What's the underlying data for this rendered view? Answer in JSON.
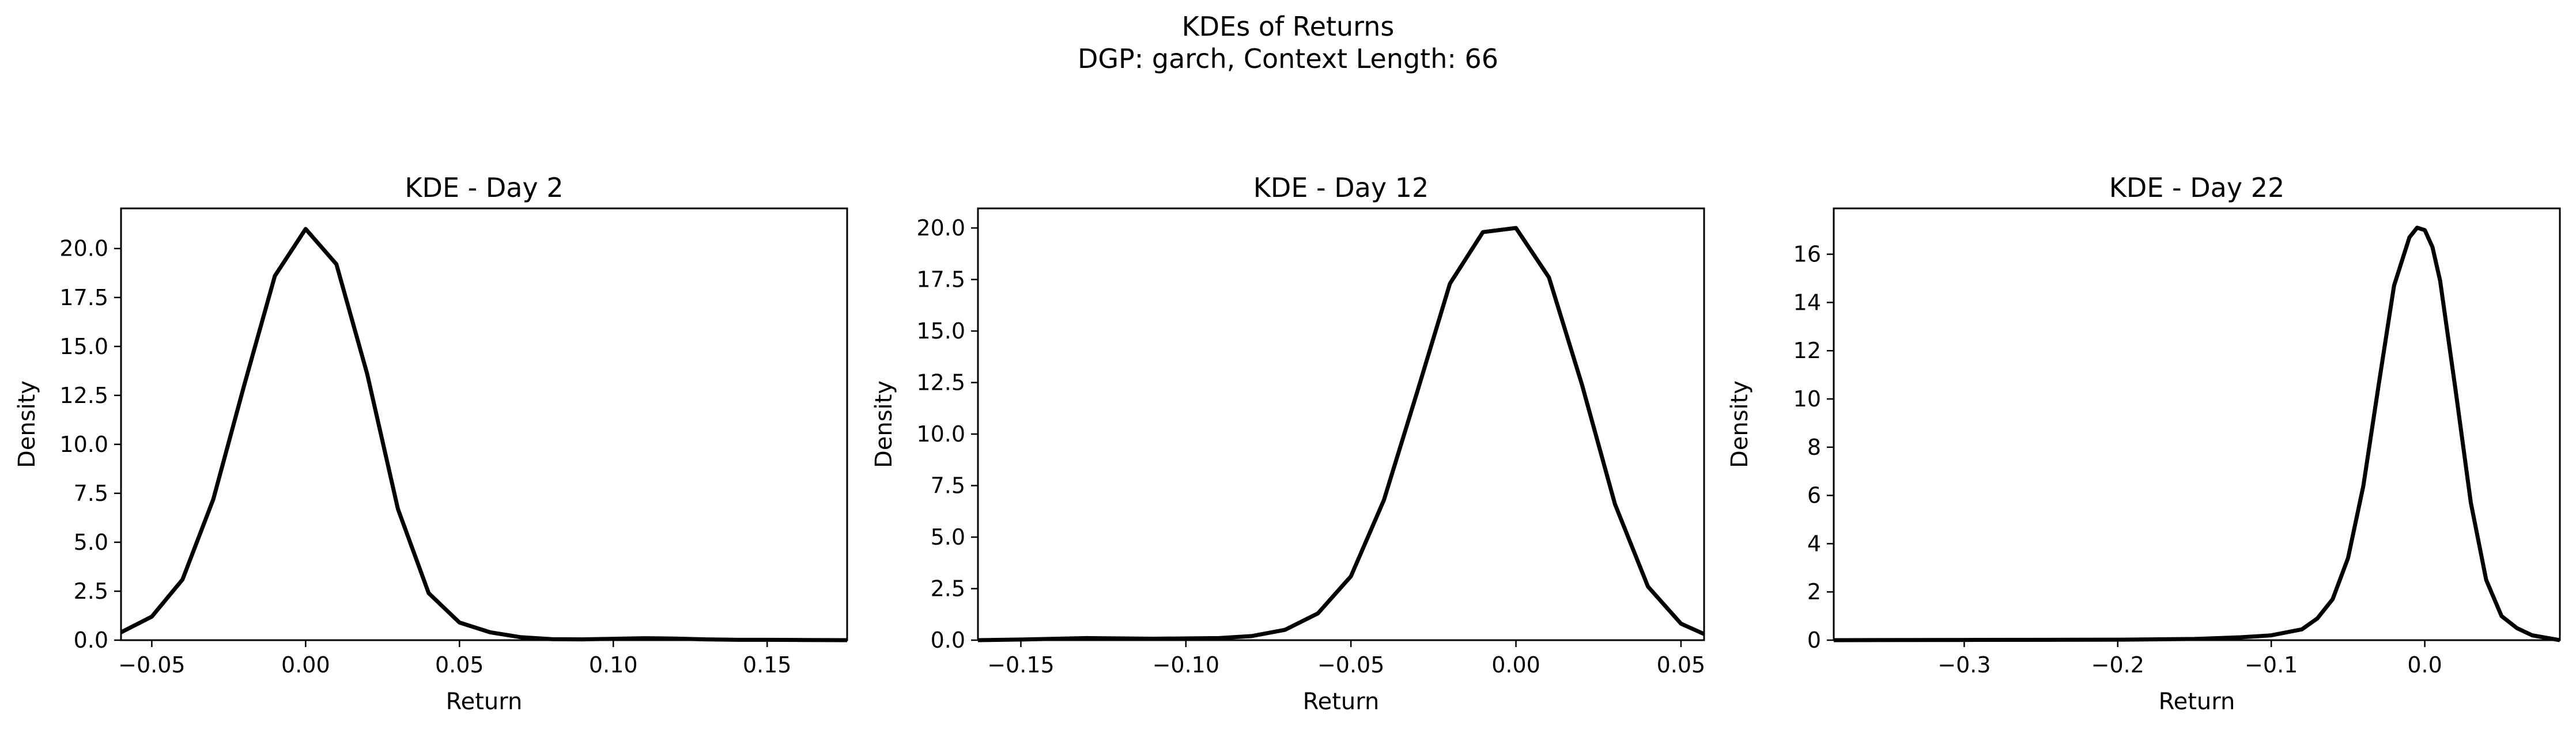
{
  "figure": {
    "title_line1": "KDEs of Returns",
    "title_line2": "DGP: garch, Context Length: 66"
  },
  "chart_data": [
    {
      "type": "line",
      "title": "KDE - Day 2",
      "xlabel": "Return",
      "ylabel": "Density",
      "xlim": [
        -0.06,
        0.176
      ],
      "ylim": [
        0,
        22.05
      ],
      "xticks": [
        -0.05,
        0.0,
        0.05,
        0.1,
        0.15
      ],
      "xtick_labels": [
        "−0.05",
        "0.00",
        "0.05",
        "0.10",
        "0.15"
      ],
      "yticks": [
        0,
        2.5,
        5,
        7.5,
        10,
        12.5,
        15,
        17.5,
        20
      ],
      "ytick_labels": [
        "0.0",
        "2.5",
        "5.0",
        "7.5",
        "10.0",
        "12.5",
        "15.0",
        "17.5",
        "20.0"
      ],
      "grid": false,
      "color": "#000000",
      "series": [
        {
          "x": [
            -0.06,
            -0.05,
            -0.04,
            -0.03,
            -0.02,
            -0.01,
            0.0,
            0.01,
            0.02,
            0.03,
            0.04,
            0.05,
            0.06,
            0.07,
            0.08,
            0.09,
            0.1,
            0.11,
            0.12,
            0.13,
            0.14,
            0.15,
            0.16,
            0.176
          ],
          "y": [
            0.4,
            1.2,
            3.1,
            7.2,
            13.0,
            18.6,
            21.0,
            19.2,
            13.6,
            6.7,
            2.4,
            0.9,
            0.4,
            0.15,
            0.05,
            0.04,
            0.07,
            0.1,
            0.08,
            0.04,
            0.02,
            0.02,
            0.01,
            0.0
          ]
        }
      ]
    },
    {
      "type": "line",
      "title": "KDE - Day 12",
      "xlabel": "Return",
      "ylabel": "Density",
      "xlim": [
        -0.163,
        0.057
      ],
      "ylim": [
        0,
        20.95
      ],
      "xticks": [
        -0.15,
        -0.1,
        -0.05,
        0.0,
        0.05
      ],
      "xtick_labels": [
        "−0.15",
        "−0.10",
        "−0.05",
        "0.00",
        "0.05"
      ],
      "yticks": [
        0,
        2.5,
        5,
        7.5,
        10,
        12.5,
        15,
        17.5,
        20
      ],
      "ytick_labels": [
        "0.0",
        "2.5",
        "5.0",
        "7.5",
        "10.0",
        "12.5",
        "15.0",
        "17.5",
        "20.0"
      ],
      "grid": false,
      "color": "#000000",
      "series": [
        {
          "x": [
            -0.163,
            -0.15,
            -0.13,
            -0.11,
            -0.09,
            -0.08,
            -0.07,
            -0.06,
            -0.05,
            -0.04,
            -0.03,
            -0.02,
            -0.01,
            0.0,
            0.01,
            0.02,
            0.03,
            0.04,
            0.05,
            0.057
          ],
          "y": [
            0.0,
            0.03,
            0.1,
            0.07,
            0.1,
            0.2,
            0.5,
            1.3,
            3.1,
            6.8,
            12.0,
            17.3,
            19.8,
            20.0,
            17.6,
            12.4,
            6.6,
            2.6,
            0.8,
            0.3
          ]
        }
      ]
    },
    {
      "type": "line",
      "title": "KDE - Day 22",
      "xlabel": "Return",
      "ylabel": "Density",
      "xlim": [
        -0.385,
        0.088
      ],
      "ylim": [
        0,
        17.9
      ],
      "xticks": [
        -0.3,
        -0.2,
        -0.1,
        0.0
      ],
      "xtick_labels": [
        "−0.3",
        "−0.2",
        "−0.1",
        "0.0"
      ],
      "yticks": [
        0,
        2,
        4,
        6,
        8,
        10,
        12,
        14,
        16
      ],
      "ytick_labels": [
        "0",
        "2",
        "4",
        "6",
        "8",
        "10",
        "12",
        "14",
        "16"
      ],
      "grid": false,
      "color": "#000000",
      "series": [
        {
          "x": [
            -0.385,
            -0.3,
            -0.2,
            -0.15,
            -0.12,
            -0.1,
            -0.08,
            -0.07,
            -0.06,
            -0.05,
            -0.04,
            -0.03,
            -0.02,
            -0.01,
            -0.005,
            0.0,
            0.005,
            0.01,
            0.02,
            0.03,
            0.04,
            0.05,
            0.06,
            0.07,
            0.088
          ],
          "y": [
            0.0,
            0.01,
            0.02,
            0.05,
            0.12,
            0.2,
            0.45,
            0.9,
            1.7,
            3.4,
            6.4,
            10.6,
            14.7,
            16.7,
            17.1,
            17.0,
            16.3,
            14.9,
            10.4,
            5.7,
            2.5,
            1.0,
            0.5,
            0.2,
            0.0
          ]
        }
      ]
    }
  ]
}
